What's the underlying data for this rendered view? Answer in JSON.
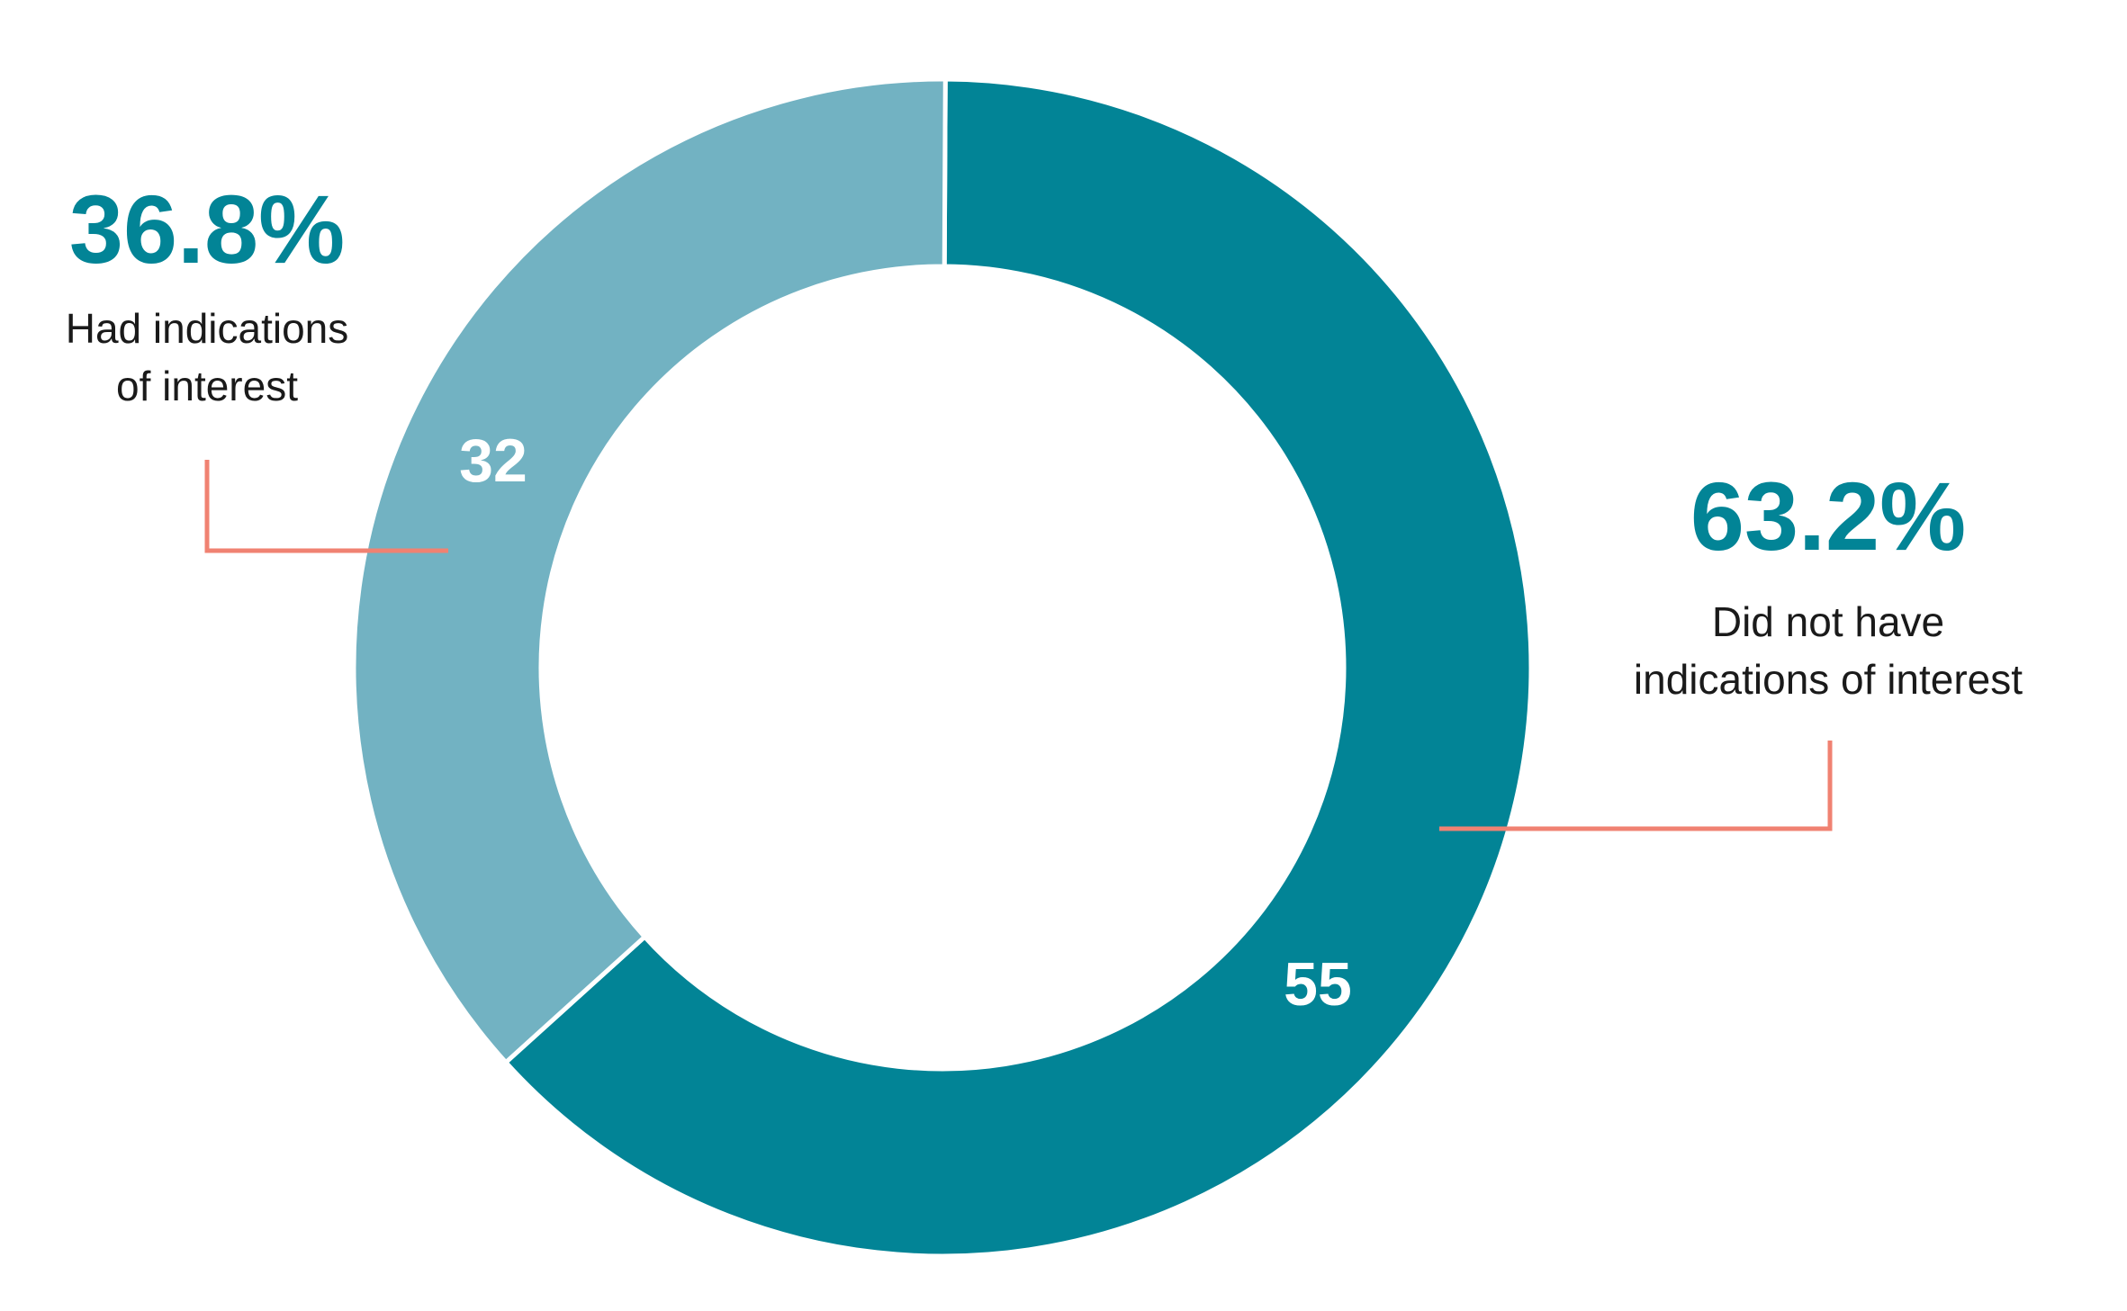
{
  "chart_data": {
    "type": "donut",
    "categories": [
      "Did not have\nindications of interest",
      "Had indications\nof interest"
    ],
    "values": [
      55,
      32
    ],
    "percent_labels": [
      "63.2%",
      "36.8%"
    ],
    "colors": [
      "#028496",
      "#72b2c2"
    ],
    "leader_color": "#f08272"
  }
}
